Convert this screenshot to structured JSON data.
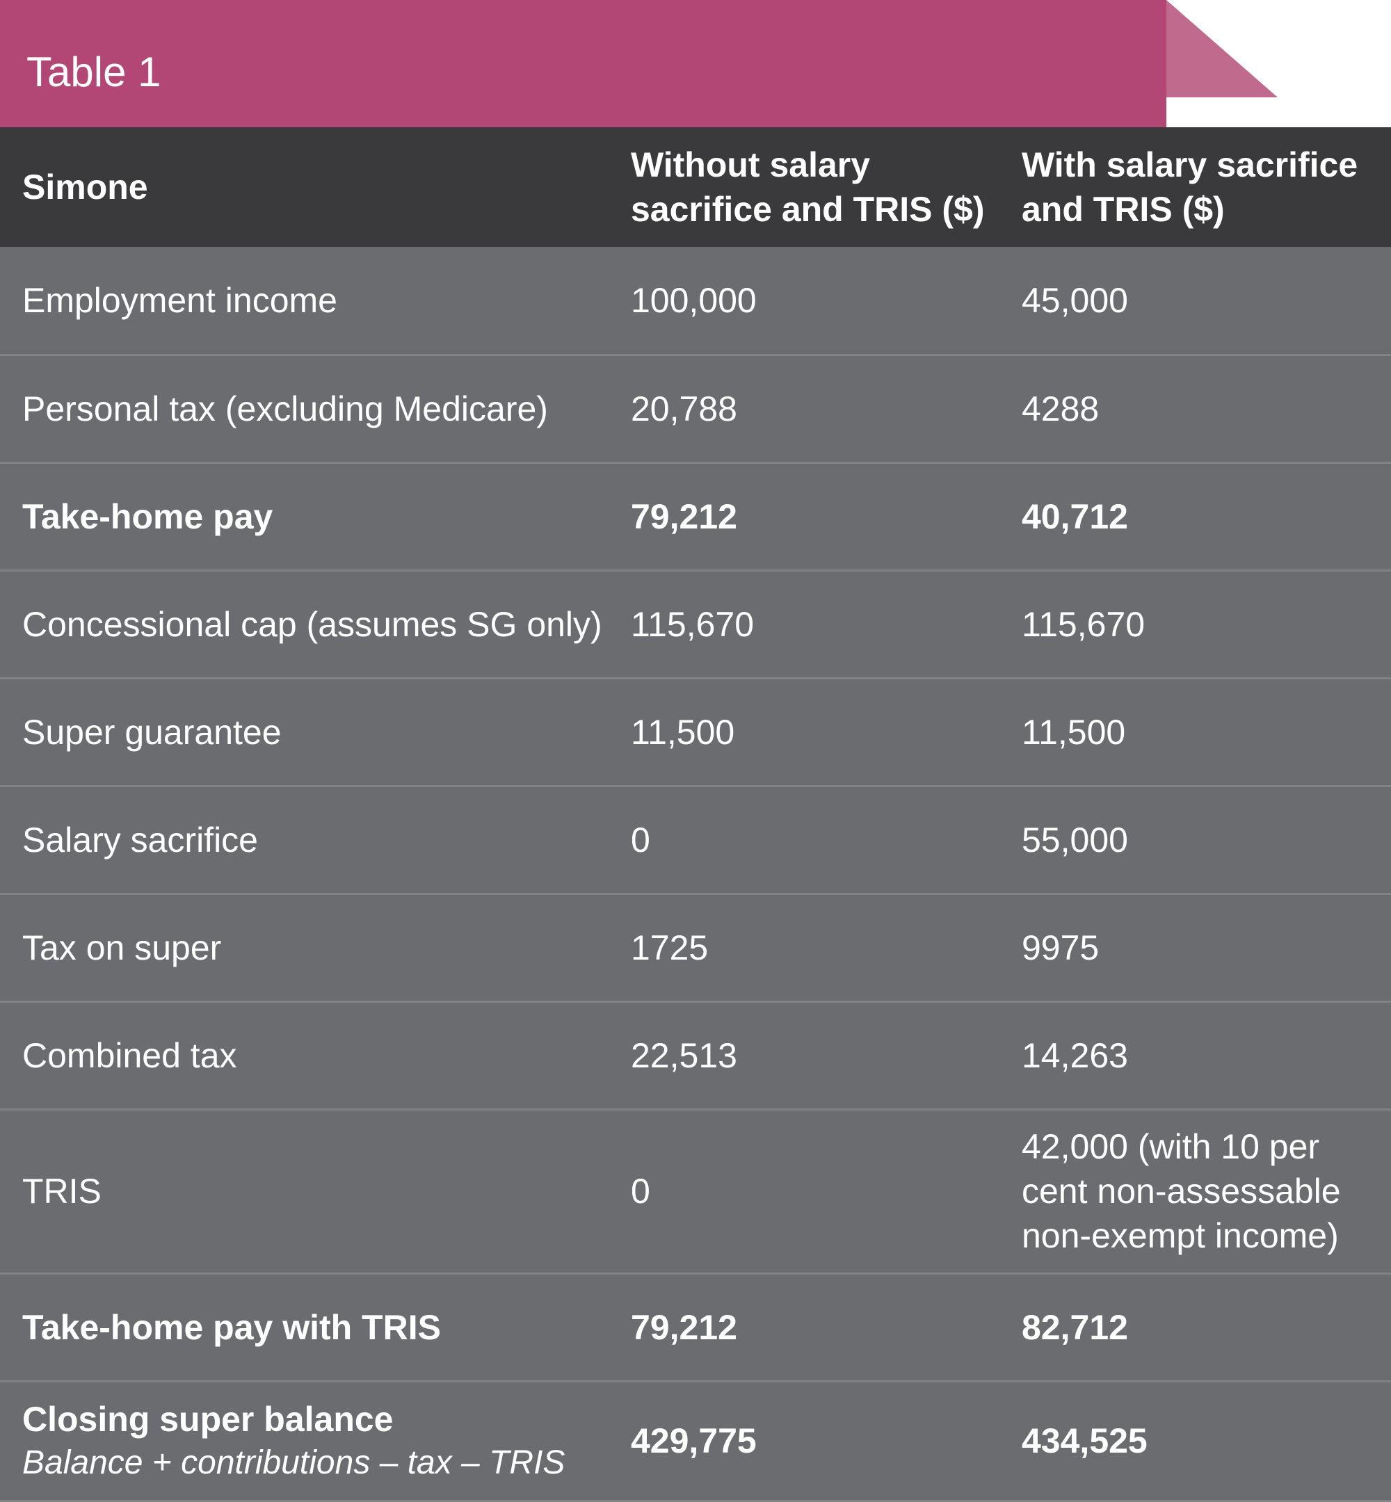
{
  "banner": {
    "title": "Table 1",
    "color": "#b24674"
  },
  "table": {
    "headers": [
      "Simone",
      "Without salary sacrifice and TRIS ($)",
      "With salary sacrifice and TRIS ($)"
    ],
    "rows": [
      {
        "label": "Employment income",
        "without": "100,000",
        "with": "45,000"
      },
      {
        "label": "Personal tax (excluding Medicare)",
        "without": "20,788",
        "with": "4288"
      },
      {
        "label": "Take-home pay",
        "without": "79,212",
        "with": "40,712"
      },
      {
        "label": "Concessional cap (assumes SG only)",
        "without": "115,670",
        "with": "115,670"
      },
      {
        "label": "Super guarantee",
        "without": "11,500",
        "with": "11,500"
      },
      {
        "label": "Salary sacrifice",
        "without": "0",
        "with": "55,000"
      },
      {
        "label": "Tax on super",
        "without": "1725",
        "with": "9975"
      },
      {
        "label": "Combined tax",
        "without": "22,513",
        "with": "14,263"
      },
      {
        "label": "TRIS",
        "without": "0",
        "with": "42,000 (with 10 per cent non-assessable non-exempt income)"
      },
      {
        "label": "Take-home pay with TRIS",
        "without": "79,212",
        "with": "82,712"
      },
      {
        "label": "Closing super balance",
        "sublabel": "Balance + contributions – tax – TRIS",
        "without": "429,775",
        "with": "434,525"
      }
    ]
  }
}
